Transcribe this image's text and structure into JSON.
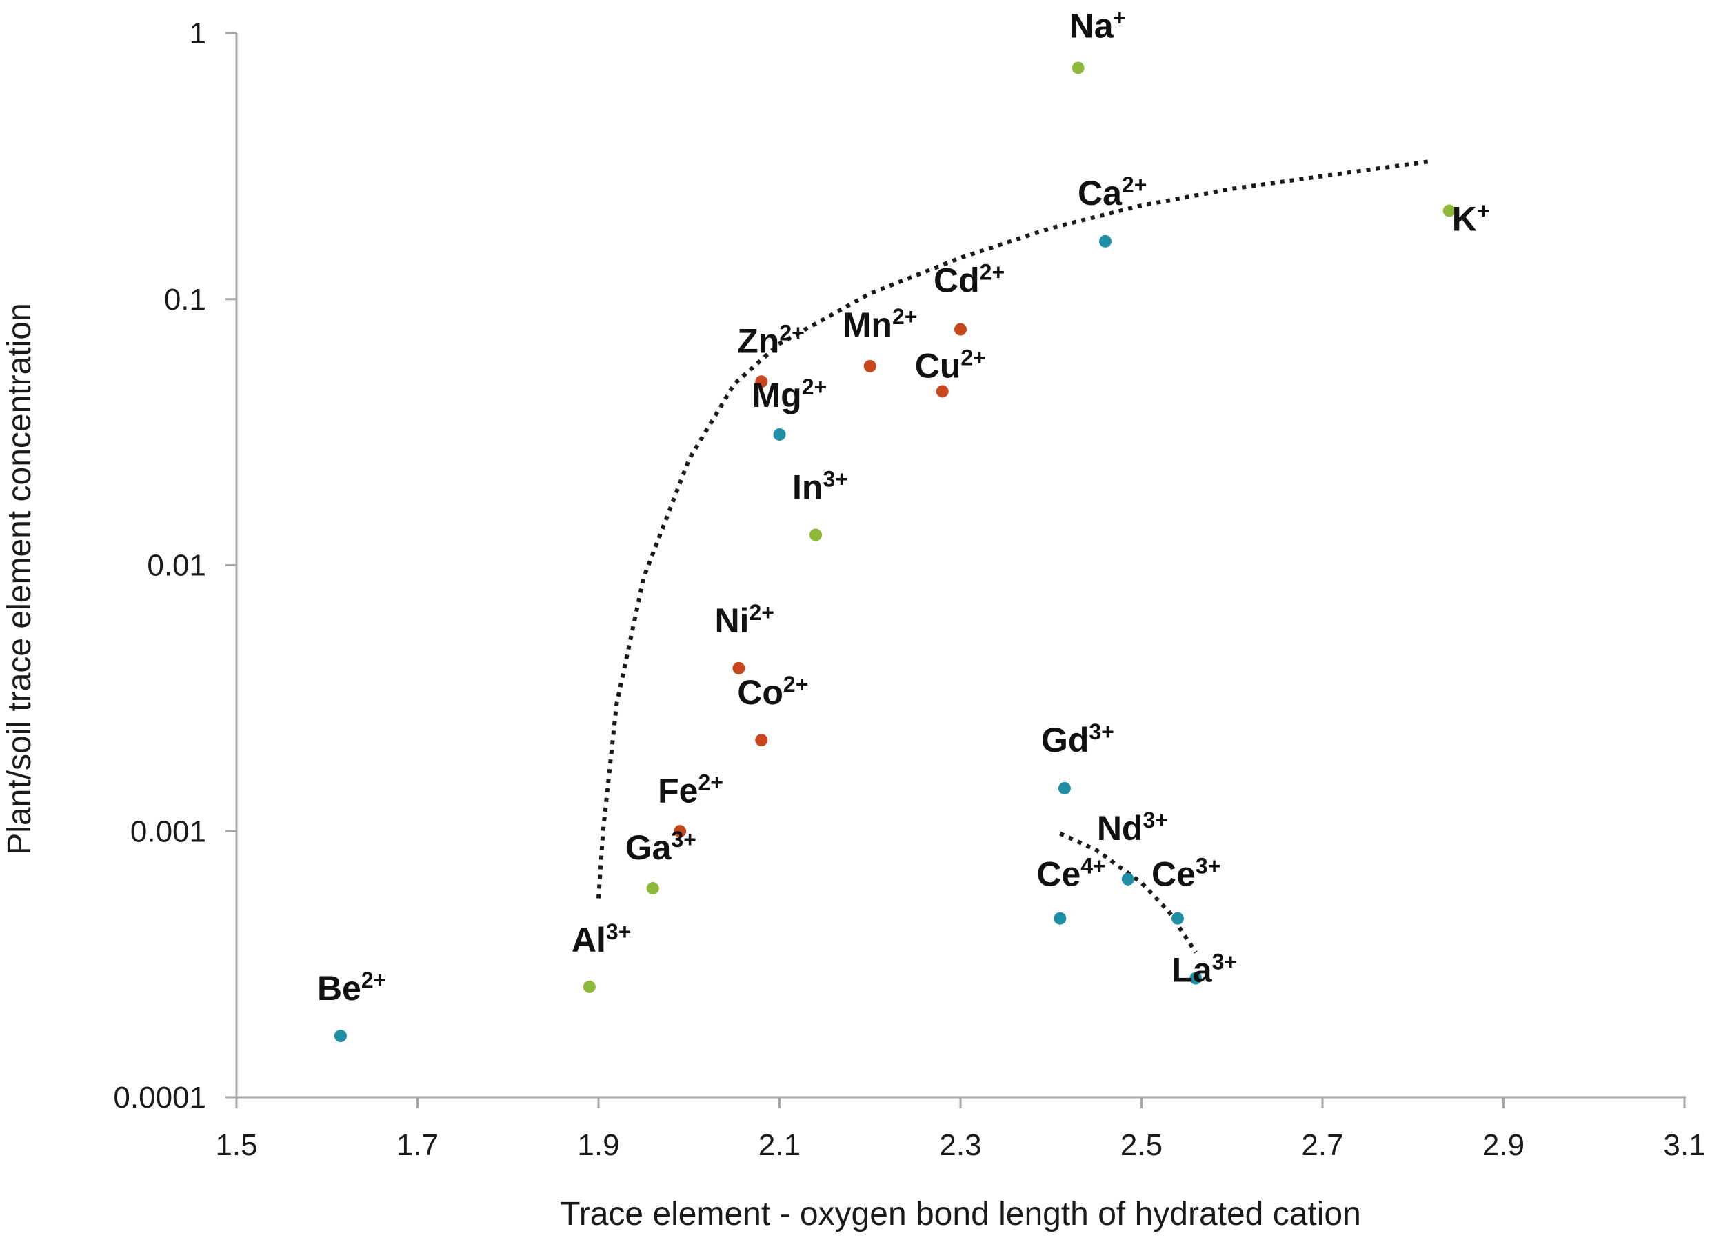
{
  "chart_data": {
    "type": "scatter",
    "xlabel": "Trace element - oxygen bond length of hydrated cation",
    "ylabel": "Plant/soil trace element  concentration",
    "xlim": [
      1.5,
      3.1
    ],
    "ylim": [
      0.0001,
      1
    ],
    "yscale": "log",
    "grid": false,
    "x_ticks": [
      1.5,
      1.7,
      1.9,
      2.1,
      2.3,
      2.5,
      2.7,
      2.9,
      3.1
    ],
    "x_tick_labels": [
      "1.5",
      "1.7",
      "1.9",
      "2.1",
      "2.3",
      "2.5",
      "2.7",
      "2.9",
      "3.1"
    ],
    "y_ticks": [
      0.0001,
      0.001,
      0.01,
      0.1,
      1
    ],
    "y_tick_labels": [
      "0.0001",
      "0.001",
      "0.01",
      "0.1",
      "1"
    ],
    "colors": {
      "teal": "#1f8fa6",
      "green": "#8db83a",
      "red": "#c8461c",
      "trend": "#1a1a1a",
      "axis": "#a6a6a6"
    },
    "points": [
      {
        "symbol": "Na",
        "charge": "+",
        "x": 2.43,
        "y": 0.74,
        "color": "green"
      },
      {
        "symbol": "K",
        "charge": "+",
        "x": 2.84,
        "y": 0.215,
        "color": "green"
      },
      {
        "symbol": "Ca",
        "charge": "2+",
        "x": 2.46,
        "y": 0.165,
        "color": "teal"
      },
      {
        "symbol": "Cd",
        "charge": "2+",
        "x": 2.3,
        "y": 0.077,
        "color": "red"
      },
      {
        "symbol": "Mn",
        "charge": "2+",
        "x": 2.2,
        "y": 0.056,
        "color": "red"
      },
      {
        "symbol": "Cu",
        "charge": "2+",
        "x": 2.28,
        "y": 0.045,
        "color": "red"
      },
      {
        "symbol": "Zn",
        "charge": "2+",
        "x": 2.08,
        "y": 0.049,
        "color": "red"
      },
      {
        "symbol": "Mg",
        "charge": "2+",
        "x": 2.1,
        "y": 0.031,
        "color": "teal"
      },
      {
        "symbol": "In",
        "charge": "3+",
        "x": 2.14,
        "y": 0.013,
        "color": "green"
      },
      {
        "symbol": "Ni",
        "charge": "2+",
        "x": 2.055,
        "y": 0.0041,
        "color": "red"
      },
      {
        "symbol": "Co",
        "charge": "2+",
        "x": 2.08,
        "y": 0.0022,
        "color": "red"
      },
      {
        "symbol": "Fe",
        "charge": "2+",
        "x": 1.99,
        "y": 0.001,
        "color": "red"
      },
      {
        "symbol": "Ga",
        "charge": "3+",
        "x": 1.96,
        "y": 0.00061,
        "color": "green"
      },
      {
        "symbol": "Al",
        "charge": "3+",
        "x": 1.89,
        "y": 0.00026,
        "color": "green"
      },
      {
        "symbol": "Be",
        "charge": "2+",
        "x": 1.615,
        "y": 0.00017,
        "color": "teal"
      },
      {
        "symbol": "Gd",
        "charge": "3+",
        "x": 2.415,
        "y": 0.00145,
        "color": "teal"
      },
      {
        "symbol": "Nd",
        "charge": "3+",
        "x": 2.485,
        "y": 0.00066,
        "color": "teal"
      },
      {
        "symbol": "Ce",
        "charge": "4+",
        "x": 2.41,
        "y": 0.00047,
        "color": "teal"
      },
      {
        "symbol": "Ce",
        "charge": "3+",
        "x": 2.54,
        "y": 0.00047,
        "color": "teal"
      },
      {
        "symbol": "La",
        "charge": "3+",
        "x": 2.56,
        "y": 0.00028,
        "color": "teal"
      }
    ],
    "trend_lines": [
      {
        "x": [
          1.9,
          1.905,
          1.92,
          1.95,
          2.0,
          2.05,
          2.1,
          2.2,
          2.3,
          2.4,
          2.5,
          2.6,
          2.7,
          2.82
        ],
        "y": [
          0.00056,
          0.001,
          0.003,
          0.009,
          0.025,
          0.048,
          0.068,
          0.105,
          0.143,
          0.185,
          0.225,
          0.26,
          0.29,
          0.33
        ]
      },
      {
        "x": [
          2.41,
          2.45,
          2.5,
          2.53,
          2.56
        ],
        "y": [
          0.00098,
          0.00085,
          0.00064,
          0.0005,
          0.00035
        ]
      }
    ]
  }
}
